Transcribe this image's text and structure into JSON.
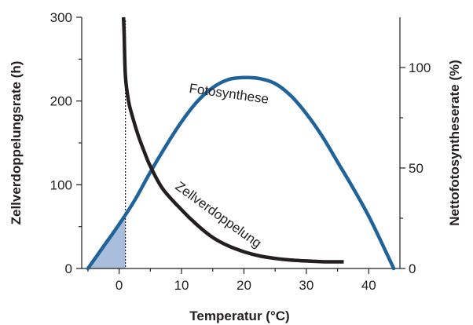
{
  "chart_data": {
    "type": "line",
    "xlabel": "Temperatur (°C)",
    "ylabel_left": "Zellverdoppelungsrate (h)",
    "ylabel_right": "Nettofotosyntheserate (%)",
    "xlim": [
      -6,
      45
    ],
    "ylim_left": [
      0,
      300
    ],
    "ylim_right": [
      0,
      125
    ],
    "x_ticks": [
      0,
      10,
      20,
      30,
      40
    ],
    "x_minor_ticks": [
      -5,
      5,
      15,
      25,
      35
    ],
    "y_left_ticks": [
      0,
      100,
      200,
      300
    ],
    "y_left_minor_ticks": [
      50,
      150,
      250
    ],
    "y_right_ticks": [
      0,
      50,
      100
    ],
    "y_right_minor_ticks": [
      25,
      75
    ],
    "vline_x": 1,
    "shaded_under": "Fotosynthese",
    "shaded_range": [
      -5,
      1
    ],
    "series": [
      {
        "name": "Fotosynthese",
        "axis": "right",
        "color": "#20639b",
        "points": [
          [
            -5,
            0
          ],
          [
            -2.5,
            11
          ],
          [
            0,
            22
          ],
          [
            2.5,
            34
          ],
          [
            5,
            48
          ],
          [
            7.5,
            61
          ],
          [
            10,
            73
          ],
          [
            12.5,
            83
          ],
          [
            15,
            90
          ],
          [
            17.5,
            94
          ],
          [
            20,
            95
          ],
          [
            22.5,
            94.5
          ],
          [
            25,
            92
          ],
          [
            27.5,
            86
          ],
          [
            30,
            77
          ],
          [
            32.5,
            66
          ],
          [
            35,
            53
          ],
          [
            37.5,
            40
          ],
          [
            40,
            26
          ],
          [
            42.5,
            10
          ],
          [
            44,
            0
          ]
        ]
      },
      {
        "name": "Zellverdoppelung",
        "axis": "left",
        "color": "#231f20",
        "points": [
          [
            0.7,
            300
          ],
          [
            0.8,
            280
          ],
          [
            1,
            230
          ],
          [
            1.5,
            200
          ],
          [
            2,
            185
          ],
          [
            3,
            160
          ],
          [
            4,
            140
          ],
          [
            5,
            122
          ],
          [
            7,
            95
          ],
          [
            10,
            70
          ],
          [
            12.5,
            52
          ],
          [
            15,
            37
          ],
          [
            17.5,
            27
          ],
          [
            20,
            20
          ],
          [
            22.5,
            15
          ],
          [
            25,
            12
          ],
          [
            27.5,
            10
          ],
          [
            30,
            9
          ],
          [
            33,
            8
          ],
          [
            36,
            8
          ]
        ]
      }
    ]
  }
}
